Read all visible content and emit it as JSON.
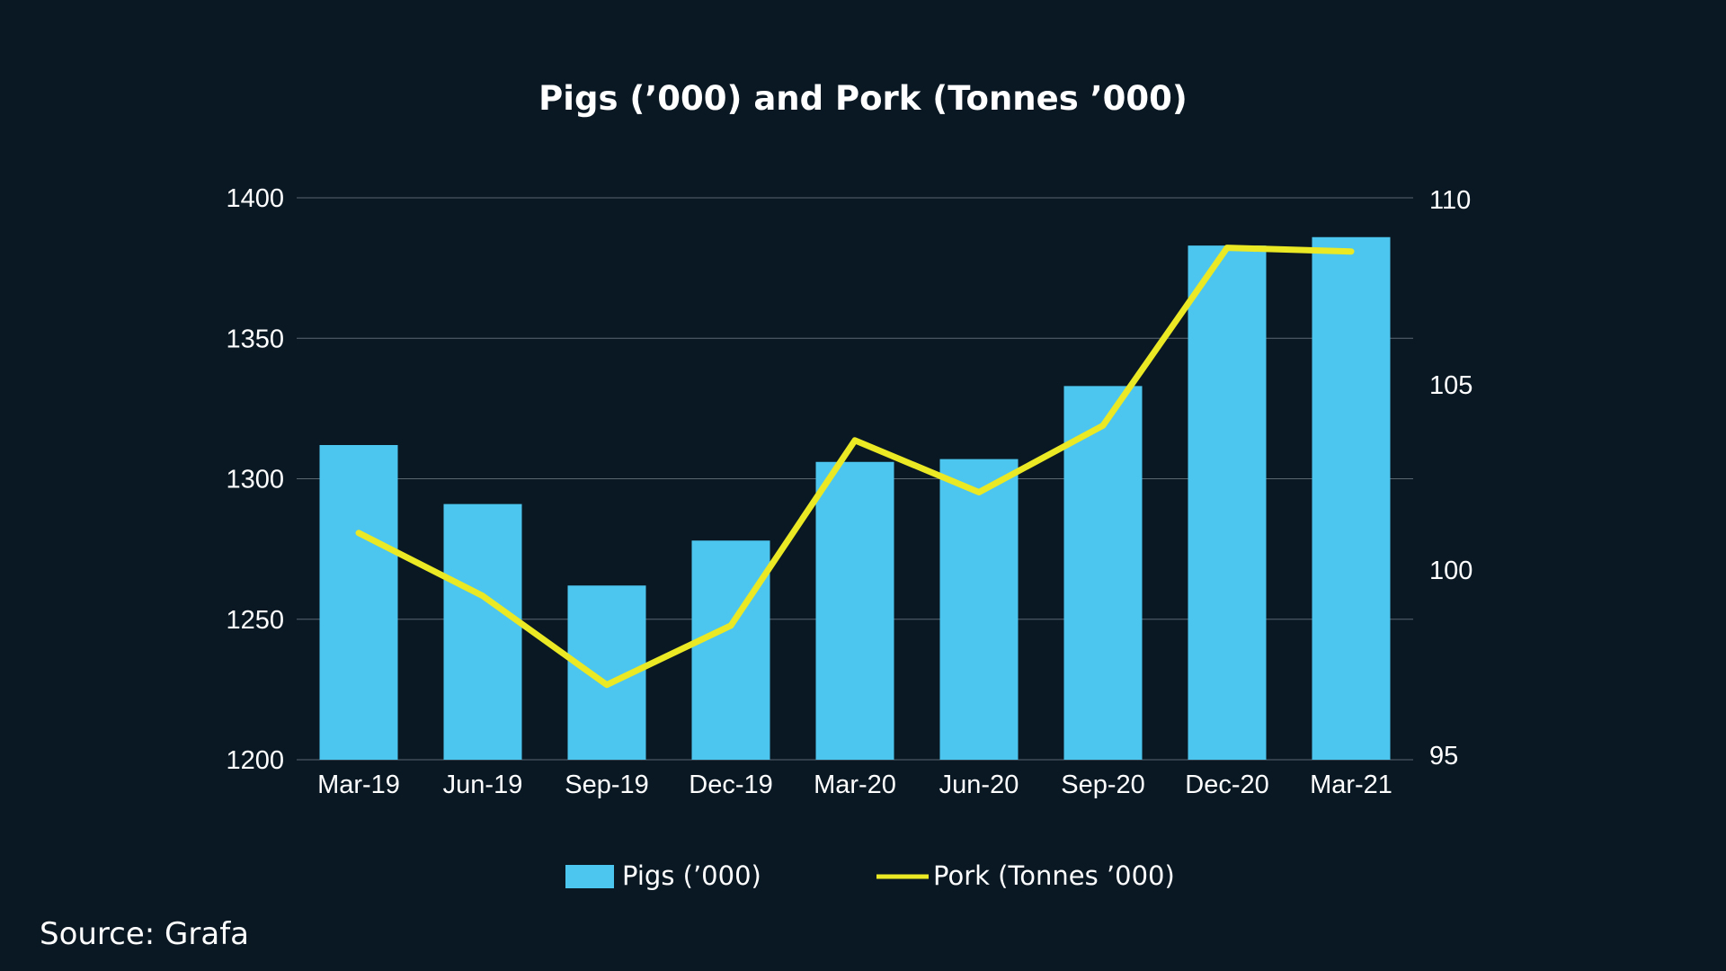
{
  "source": "Source: Grafa",
  "colors": {
    "background": "#0a1824",
    "bars": "#4cc6ee",
    "line": "#ebe824",
    "grid": "#5a6670",
    "text": "#ffffff"
  },
  "chart_data": {
    "type": "bar",
    "title": "Pigs (’000) and Pork (Tonnes ’000)",
    "categories": [
      "Mar-19",
      "Jun-19",
      "Sep-19",
      "Dec-19",
      "Mar-20",
      "Jun-20",
      "Sep-20",
      "Dec-20",
      "Mar-21"
    ],
    "series": [
      {
        "name": "Pigs (’000)",
        "type": "bar",
        "axis": "left",
        "values": [
          1312,
          1291,
          1262,
          1278,
          1306,
          1307,
          1333,
          1383,
          1386
        ]
      },
      {
        "name": "Pork (Tonnes ’000)",
        "type": "line",
        "axis": "right",
        "values": [
          101.0,
          99.3,
          96.9,
          98.5,
          103.5,
          102.1,
          103.9,
          108.7,
          108.6
        ]
      }
    ],
    "left_axis": {
      "ylim": [
        1200,
        1400
      ],
      "ticks": [
        1200,
        1250,
        1300,
        1350,
        1400
      ]
    },
    "right_axis": {
      "ylim": [
        95,
        110
      ],
      "ticks": [
        95,
        100,
        105,
        110
      ]
    },
    "grid": true,
    "legend_position": "bottom"
  }
}
